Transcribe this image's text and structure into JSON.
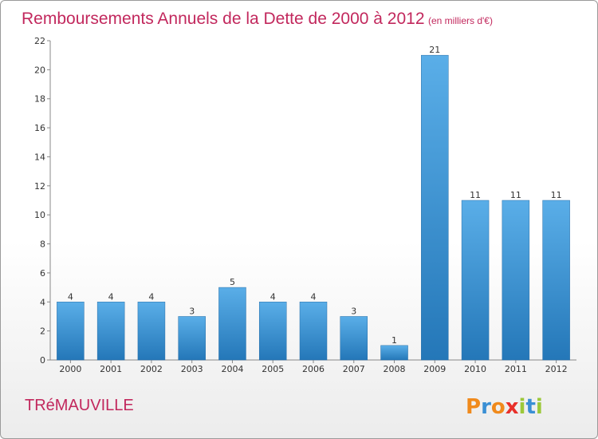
{
  "chart_data": {
    "type": "bar",
    "title": "Remboursements Annuels de la Dette de 2000 à 2012",
    "subtitle": "(en milliers d'€)",
    "categories": [
      "2000",
      "2001",
      "2002",
      "2003",
      "2004",
      "2005",
      "2006",
      "2007",
      "2008",
      "2009",
      "2010",
      "2011",
      "2012"
    ],
    "values": [
      4,
      4,
      4,
      3,
      5,
      4,
      4,
      3,
      1,
      21,
      11,
      11,
      11
    ],
    "ylim": [
      0,
      22
    ],
    "yticks": [
      0,
      2,
      4,
      6,
      8,
      10,
      12,
      14,
      16,
      18,
      20,
      22
    ],
    "grid": false,
    "bar_color": "#3a8fd4"
  },
  "commune": "TRéMAUVILLE",
  "logo": {
    "text": "Proxiti",
    "colors": [
      "#f08a1c",
      "#3a8fd4",
      "#f08a1c",
      "#e8302a",
      "#9cc83a",
      "#3a8fd4",
      "#9cc83a"
    ]
  }
}
